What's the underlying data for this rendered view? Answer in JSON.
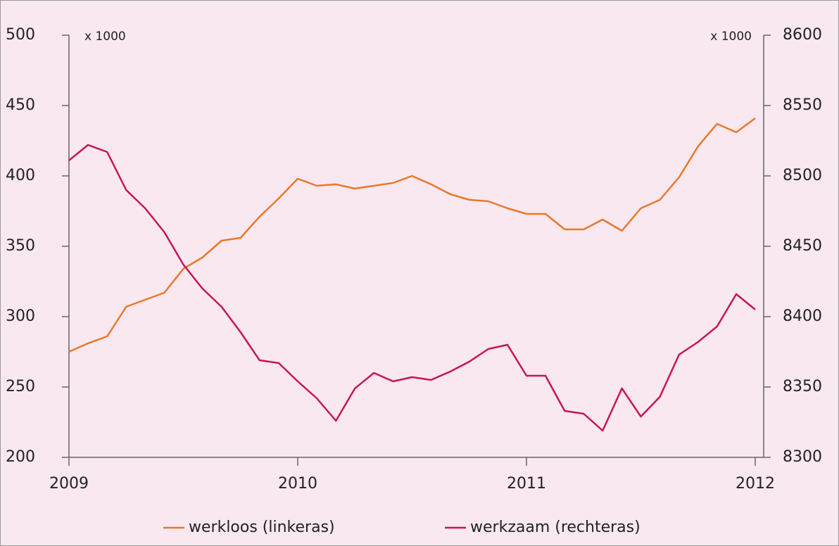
{
  "chart_data": {
    "type": "line",
    "y_unit": "x 1000",
    "y2_unit": "x 1000",
    "x": [
      2009,
      2009.083,
      2009.167,
      2009.25,
      2009.333,
      2009.417,
      2009.5,
      2009.583,
      2009.667,
      2009.75,
      2009.833,
      2009.917,
      2010,
      2010.083,
      2010.167,
      2010.25,
      2010.333,
      2010.417,
      2010.5,
      2010.583,
      2010.667,
      2010.75,
      2010.833,
      2010.917,
      2011,
      2011.083,
      2011.167,
      2011.25,
      2011.333,
      2011.417,
      2011.5,
      2011.583,
      2011.667,
      2011.75,
      2011.833,
      2011.917,
      2012
    ],
    "xlim": [
      2009,
      2012
    ],
    "xticks": [
      2009,
      2010,
      2011,
      2012
    ],
    "ylim": [
      200,
      500
    ],
    "yticks": [
      200,
      250,
      300,
      350,
      400,
      450,
      500
    ],
    "y2lim": [
      8300,
      8600
    ],
    "y2ticks": [
      8300,
      8350,
      8400,
      8450,
      8500,
      8550,
      8600
    ],
    "legend": "bottom",
    "grid": false,
    "series": [
      {
        "name": "werkloos (linkeras)",
        "color": "#e8792a",
        "values": [
          275,
          281,
          286,
          307,
          312,
          317,
          334,
          342,
          354,
          356,
          371,
          384,
          398,
          393,
          394,
          391,
          393,
          395,
          400,
          394,
          387,
          383,
          382,
          377,
          373,
          373,
          362,
          362,
          369,
          361,
          377,
          383,
          399,
          421,
          437,
          431,
          441
        ]
      },
      {
        "name": "werkzaam (rechteras)",
        "color": "#c8145a",
        "axis": "y2",
        "values": [
          8511,
          8522,
          8517,
          8490,
          8477,
          8460,
          8437,
          8420,
          8407,
          8389,
          8369,
          8367,
          8354,
          8342,
          8326,
          8349,
          8360,
          8354,
          8357,
          8355,
          8361,
          8368,
          8377,
          8380,
          8358,
          8358,
          8333,
          8331,
          8319,
          8349,
          8329,
          8343,
          8373,
          8382,
          8393,
          8416,
          8405
        ]
      }
    ]
  }
}
